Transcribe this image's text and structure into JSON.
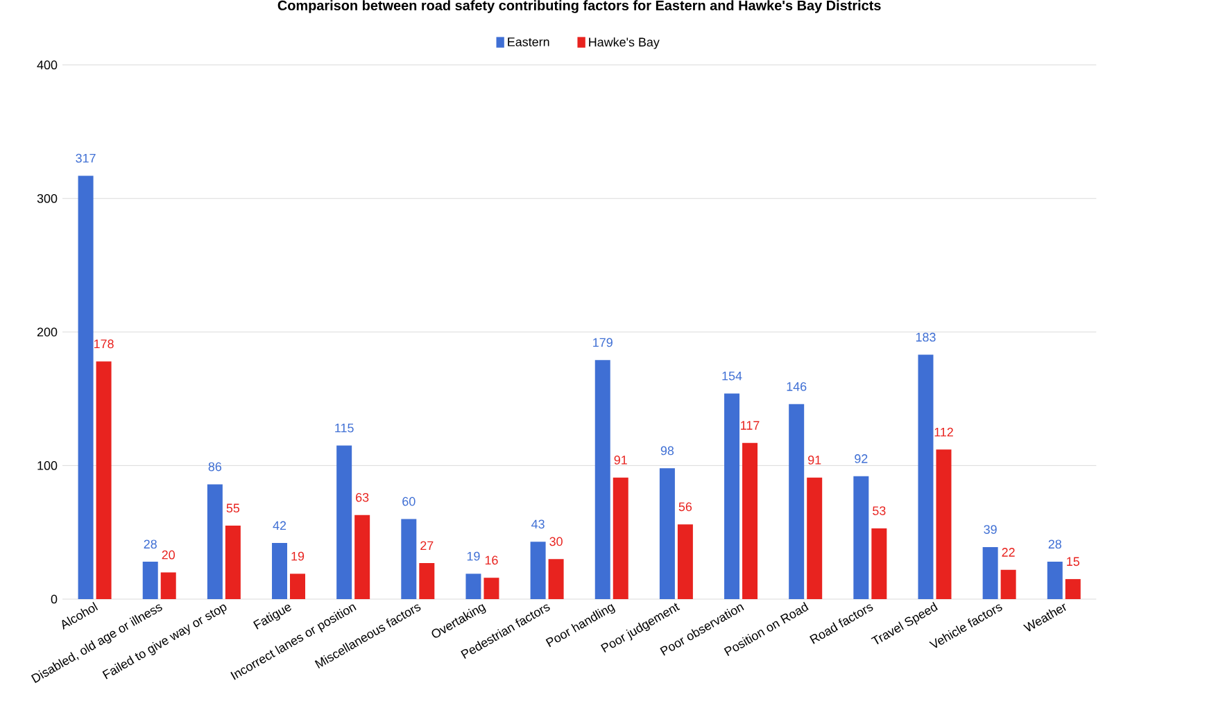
{
  "chart_data": {
    "type": "bar",
    "title": "Comparison between road safety contributing factors for Eastern and Hawke's Bay Districts",
    "categories": [
      "Alcohol",
      "Disabled, old age or illness",
      "Failed to give way or stop",
      "Fatigue",
      "Incorrect lanes or position",
      "Miscellaneous factors",
      "Overtaking",
      "Pedestrian factors",
      "Poor handling",
      "Poor judgement",
      "Poor observation",
      "Position on Road",
      "Road factors",
      "Travel Speed",
      "Vehicle factors",
      "Weather"
    ],
    "series": [
      {
        "name": "Eastern",
        "color": "#3f6fd4",
        "values": [
          317,
          28,
          86,
          42,
          115,
          60,
          19,
          43,
          179,
          98,
          154,
          146,
          92,
          183,
          39,
          28
        ]
      },
      {
        "name": "Hawke's Bay",
        "color": "#e8231f",
        "values": [
          178,
          20,
          55,
          19,
          63,
          27,
          16,
          30,
          91,
          56,
          117,
          91,
          53,
          112,
          22,
          15
        ]
      }
    ],
    "ylim": [
      0,
      400
    ],
    "yticks": [
      0,
      100,
      200,
      300,
      400
    ],
    "grid": "y",
    "legend": "top",
    "data_labels": true
  }
}
